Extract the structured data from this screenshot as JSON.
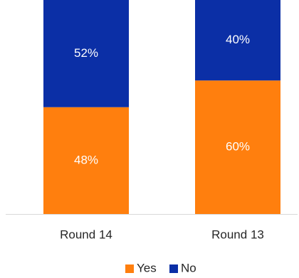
{
  "chart_data": {
    "type": "bar",
    "stacked": true,
    "percent_stacked": true,
    "categories": [
      "Round 14",
      "Round 13"
    ],
    "series": [
      {
        "name": "Yes",
        "values": [
          48,
          60
        ],
        "labels": [
          "48%",
          "60%"
        ],
        "color": "#FF7F0E"
      },
      {
        "name": "No",
        "values": [
          52,
          40
        ],
        "labels": [
          "52%",
          "40%"
        ],
        "color": "#0B2FA6"
      }
    ],
    "ylim": [
      0,
      100
    ],
    "grid": false,
    "legend": {
      "position": "bottom",
      "entries": [
        "Yes",
        "No"
      ]
    }
  }
}
